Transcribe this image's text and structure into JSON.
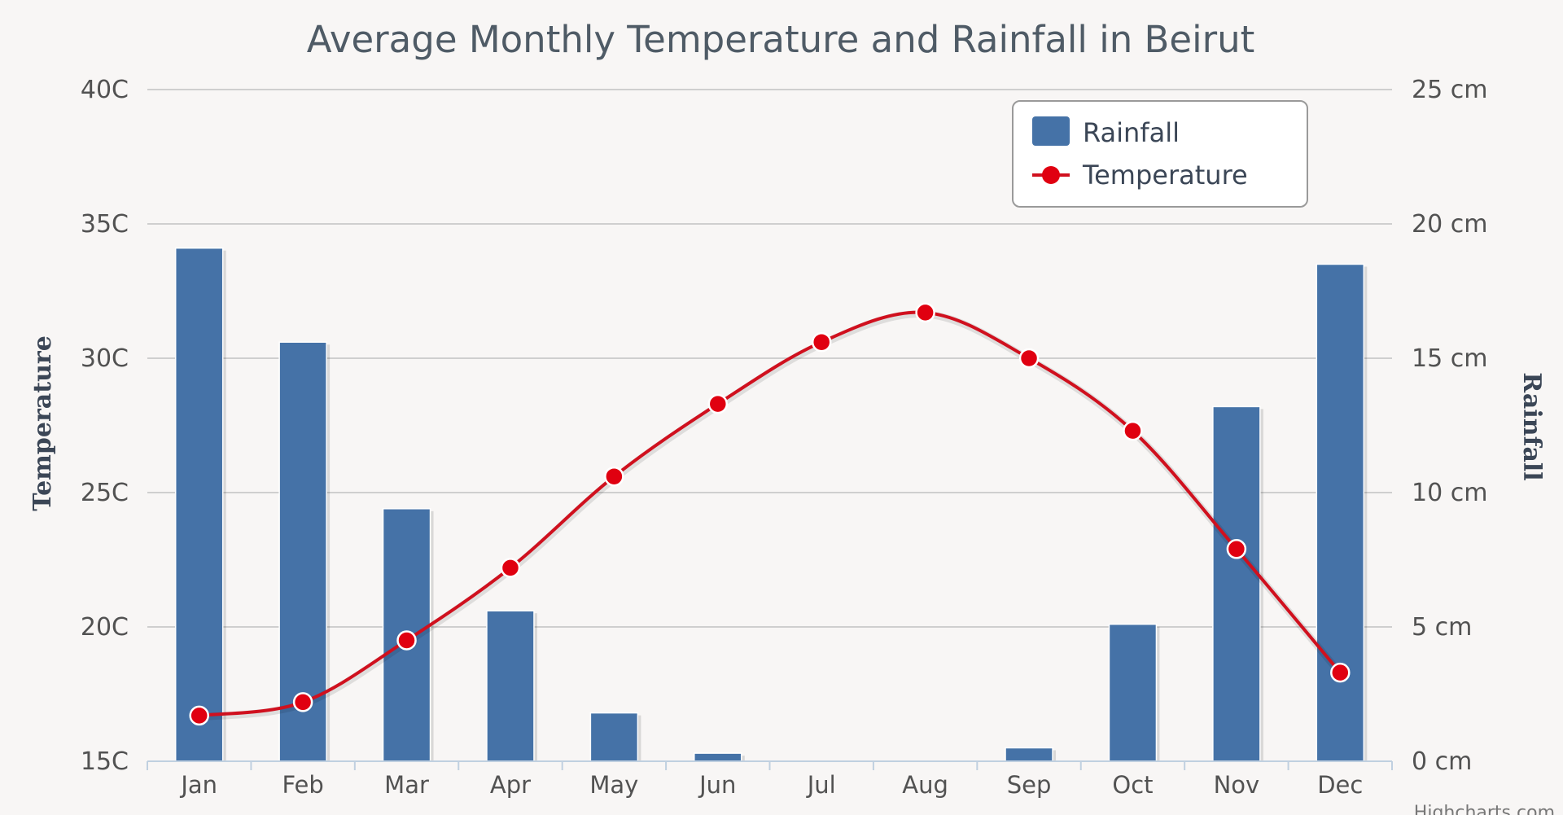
{
  "chart_data": {
    "type": "bar+line",
    "title": "Average Monthly Temperature and Rainfall in Beirut",
    "categories": [
      "Jan",
      "Feb",
      "Mar",
      "Apr",
      "May",
      "Jun",
      "Jul",
      "Aug",
      "Sep",
      "Oct",
      "Nov",
      "Dec"
    ],
    "series": [
      {
        "name": "Rainfall",
        "type": "bar",
        "axis": "right",
        "unit": "cm",
        "color": "#4572a7",
        "values": [
          19.1,
          15.6,
          9.4,
          5.6,
          1.8,
          0.3,
          0,
          0,
          0.5,
          5.1,
          13.2,
          18.5
        ]
      },
      {
        "name": "Temperature",
        "type": "line",
        "axis": "left",
        "unit": "C",
        "color": "#d0101e",
        "values": [
          16.7,
          17.2,
          19.5,
          22.2,
          25.6,
          28.3,
          30.6,
          31.7,
          30.0,
          27.3,
          22.9,
          18.3
        ]
      }
    ],
    "y_left": {
      "label": "Temperature",
      "min": 15,
      "max": 40,
      "ticks": [
        15,
        20,
        25,
        30,
        35,
        40
      ],
      "tick_labels": [
        "15C",
        "20C",
        "25C",
        "30C",
        "35C",
        "40C"
      ]
    },
    "y_right": {
      "label": "Rainfall",
      "min": 0,
      "max": 25,
      "ticks": [
        0,
        5,
        10,
        15,
        20,
        25
      ],
      "tick_labels": [
        "0 cm",
        "5 cm",
        "10 cm",
        "15 cm",
        "20 cm",
        "25 cm"
      ]
    },
    "legend": {
      "position": "top-right",
      "items": [
        "Rainfall",
        "Temperature"
      ]
    },
    "grid": true,
    "credit": "Highcharts.com"
  }
}
